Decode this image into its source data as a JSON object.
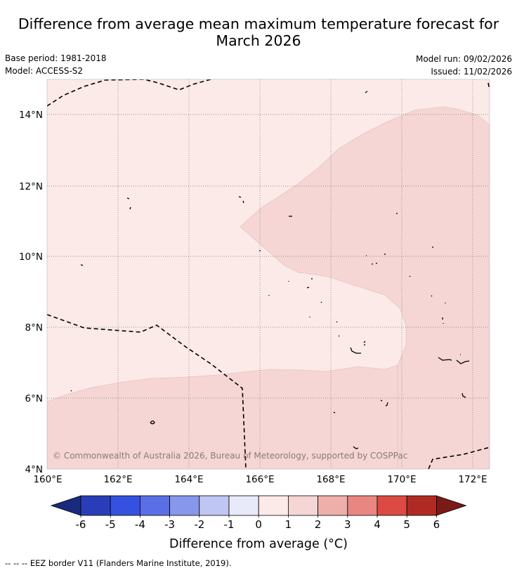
{
  "title_line1": "Difference from average mean maximum temperature forecast for",
  "title_line2": "March 2026",
  "meta": {
    "base_period": "Base period: 1981-2018",
    "model": "Model: ACCESS-S2",
    "model_run": "Model run: 09/02/2026",
    "issued": "Issued: 11/02/2026"
  },
  "map": {
    "lon_ticks": [
      "160°E",
      "162°E",
      "164°E",
      "166°E",
      "168°E",
      "170°E",
      "172°E"
    ],
    "lat_ticks": [
      "14°N",
      "12°N",
      "10°N",
      "8°N",
      "6°N",
      "4°N"
    ],
    "lon_range": [
      160,
      172.5
    ],
    "lat_range": [
      4,
      15
    ],
    "copyright": "© Commonwealth of Australia 2026, Bureau of Meteorology, supported by COSPPac",
    "colors": {
      "band_0_1": "#fbeae8",
      "band_1_2": "#f5d6d4",
      "border": "#000000",
      "grid": "#777777"
    }
  },
  "legend": {
    "title": "Difference from average (°C)",
    "labels": [
      "-6",
      "-5",
      "-4",
      "-3",
      "-2",
      "-1",
      "0",
      "1",
      "2",
      "3",
      "4",
      "5",
      "6"
    ],
    "colors": [
      "#1a2a7f",
      "#2a3db8",
      "#3451e0",
      "#5a6fe6",
      "#8797ec",
      "#bfc6f3",
      "#e8eaf9",
      "#fbeae8",
      "#f5d6d4",
      "#eeaeaa",
      "#e88682",
      "#db4a43",
      "#b02a24",
      "#7b1a16"
    ]
  },
  "footnote": "--  --  -- EEZ border V11 (Flanders Marine Institute, 2019)."
}
